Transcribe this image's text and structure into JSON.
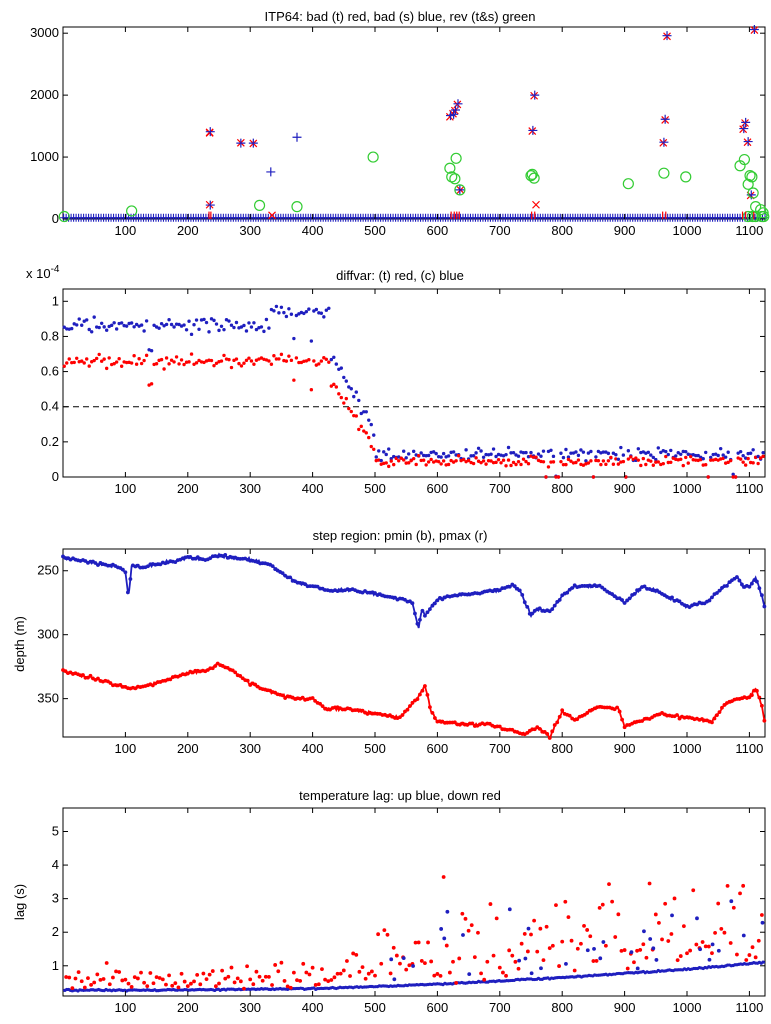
{
  "figure": "ITP64 multi-panel diagnostic figure",
  "chart_data": [
    {
      "id": "p1",
      "type": "scatter",
      "title": "ITP64: bad (t) red, bad (s) blue, rev (t&s) green",
      "xlabel": "",
      "ylabel": "",
      "xlim": [
        0,
        1125
      ],
      "ylim": [
        0,
        3100
      ],
      "xticks": [
        100,
        200,
        300,
        400,
        500,
        600,
        700,
        800,
        900,
        1000,
        1100
      ],
      "yticks": [
        0,
        1000,
        2000,
        3000
      ],
      "series": [
        {
          "name": "bad (t)",
          "color": "#ff0000",
          "marker": "x",
          "x": [
            235,
            235,
            235,
            285,
            305,
            335,
            620,
            625,
            628,
            632,
            637,
            752,
            755,
            758,
            962,
            965,
            968,
            1090,
            1093,
            1097,
            1102,
            1108
          ],
          "y": [
            1400,
            230,
            1390,
            1230,
            1220,
            60,
            1650,
            1700,
            1750,
            1850,
            470,
            1420,
            1990,
            230,
            1230,
            1600,
            2950,
            1450,
            1550,
            1240,
            380,
            3050
          ]
        },
        {
          "name": "bad (s)",
          "color": "#1f1fbf",
          "marker": "+",
          "x": [
            236,
            236,
            285,
            305,
            333,
            375,
            621,
            626,
            629,
            633,
            636,
            753,
            756,
            963,
            965,
            968,
            1091,
            1094,
            1098,
            1103,
            1108
          ],
          "y": [
            1410,
            225,
            1225,
            1225,
            760,
            1320,
            1670,
            1690,
            1760,
            1860,
            470,
            1430,
            2000,
            1240,
            1610,
            2960,
            1460,
            1560,
            1250,
            390,
            3060
          ]
        },
        {
          "name": "rev (t&s)",
          "color": "#33cc33",
          "marker": "o",
          "x": [
            110,
            315,
            375,
            497,
            620,
            623,
            628,
            630,
            636,
            750,
            752,
            755,
            906,
            963,
            998,
            1085,
            1092,
            1098,
            1101,
            1104,
            1106,
            1110,
            1118,
            1122
          ],
          "y": [
            130,
            220,
            200,
            1000,
            820,
            680,
            650,
            980,
            470,
            700,
            720,
            660,
            570,
            740,
            680,
            860,
            960,
            560,
            700,
            680,
            420,
            200,
            150,
            100
          ]
        }
      ]
    },
    {
      "id": "p2",
      "type": "scatter",
      "title": "diffvar: (t) red, (c) blue",
      "exponent_label": "x 10",
      "exponent_power": "-4",
      "xlabel": "",
      "ylabel": "",
      "xlim": [
        0,
        1125
      ],
      "ylim": [
        0,
        1.07
      ],
      "xticks": [
        100,
        200,
        300,
        400,
        500,
        600,
        700,
        800,
        900,
        1000,
        1100
      ],
      "yticks": [
        0,
        0.2,
        0.4,
        0.6,
        0.8,
        1
      ],
      "ytick_labels": [
        "0",
        "0.2",
        "0.4",
        "0.6",
        "0.8",
        "1"
      ],
      "reference_line": {
        "y": 0.4,
        "style": "dashed"
      },
      "series": [
        {
          "name": "(t)",
          "color": "#ff0000"
        },
        {
          "name": "(c)",
          "color": "#1f1fbf"
        }
      ]
    },
    {
      "id": "p3",
      "type": "line",
      "title": "step region: pmin (b), pmax (r)",
      "xlabel": "",
      "ylabel": "depth (m)",
      "xlim": [
        0,
        1125
      ],
      "ylim": [
        380,
        233
      ],
      "y_reversed": true,
      "xticks": [
        100,
        200,
        300,
        400,
        500,
        600,
        700,
        800,
        900,
        1000,
        1100
      ],
      "yticks": [
        250,
        300,
        350
      ],
      "series": [
        {
          "name": "pmin",
          "color": "#1f1fbf",
          "x": [
            0,
            30,
            60,
            90,
            100,
            105,
            110,
            130,
            160,
            200,
            230,
            250,
            270,
            300,
            330,
            360,
            380,
            400,
            420,
            460,
            500,
            540,
            560,
            570,
            575,
            580,
            600,
            620,
            660,
            700,
            720,
            735,
            750,
            760,
            780,
            800,
            820,
            860,
            900,
            930,
            960,
            1000,
            1030,
            1060,
            1080,
            1090,
            1100,
            1110,
            1115,
            1120,
            1125
          ],
          "y": [
            240,
            242,
            245,
            247,
            251,
            270,
            246,
            247,
            244,
            240,
            241,
            238,
            240,
            241,
            245,
            255,
            260,
            262,
            265,
            265,
            268,
            272,
            275,
            295,
            280,
            285,
            272,
            270,
            268,
            265,
            261,
            268,
            285,
            280,
            282,
            270,
            262,
            262,
            275,
            262,
            268,
            278,
            275,
            262,
            255,
            262,
            262,
            256,
            262,
            270,
            280
          ]
        },
        {
          "name": "pmax",
          "color": "#ff0000",
          "x": [
            0,
            30,
            60,
            90,
            110,
            150,
            200,
            230,
            250,
            270,
            300,
            340,
            370,
            400,
            420,
            460,
            500,
            540,
            570,
            580,
            590,
            600,
            640,
            680,
            720,
            740,
            760,
            780,
            790,
            800,
            820,
            860,
            890,
            900,
            920,
            960,
            1000,
            1040,
            1060,
            1080,
            1100,
            1110,
            1120,
            1125
          ],
          "y": [
            328,
            332,
            335,
            340,
            342,
            338,
            330,
            328,
            322,
            328,
            338,
            346,
            350,
            350,
            358,
            358,
            362,
            365,
            348,
            340,
            360,
            368,
            370,
            370,
            375,
            378,
            372,
            380,
            370,
            360,
            366,
            356,
            358,
            372,
            368,
            362,
            365,
            368,
            355,
            350,
            349,
            342,
            355,
            370
          ]
        }
      ]
    },
    {
      "id": "p4",
      "type": "scatter",
      "title": "temperature lag: up blue, down red",
      "xlabel": "",
      "ylabel": "lag (s)",
      "xlim": [
        0,
        1125
      ],
      "ylim": [
        0.1,
        5.7
      ],
      "xticks": [
        100,
        200,
        300,
        400,
        500,
        600,
        700,
        800,
        900,
        1000,
        1100
      ],
      "yticks": [
        1,
        2,
        3,
        4,
        5
      ],
      "trend_line": {
        "x": [
          0,
          200,
          400,
          600,
          800,
          1000,
          1125
        ],
        "y": [
          0.27,
          0.28,
          0.32,
          0.45,
          0.65,
          0.9,
          1.1
        ]
      },
      "series": [
        {
          "name": "up",
          "color": "#1f1fbf"
        },
        {
          "name": "down",
          "color": "#ff0000"
        }
      ]
    }
  ]
}
